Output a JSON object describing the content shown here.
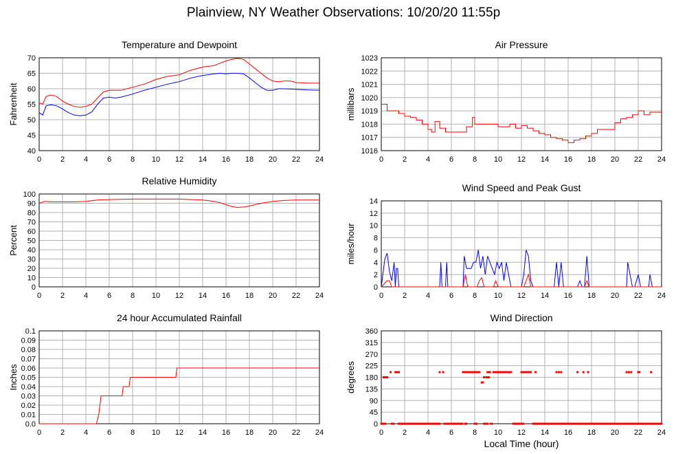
{
  "page": {
    "title": "Plainview, NY Weather Observations: 10/20/20 11:55p"
  },
  "chart_data": [
    {
      "type": "line",
      "title": "Temperature and Dewpoint",
      "ylabel": "Fahrenheit",
      "xlabel": "",
      "xlim": [
        0,
        24
      ],
      "ylim": [
        40,
        70
      ],
      "xticks": [
        0,
        2,
        4,
        6,
        8,
        10,
        12,
        14,
        16,
        18,
        20,
        22,
        24
      ],
      "yticks": [
        40,
        45,
        50,
        55,
        60,
        65,
        70
      ],
      "grid": true,
      "colors": {
        "series_1": "#ff0000",
        "series_2": "#0000ff"
      },
      "series": [
        {
          "color": "#ff0000",
          "x": [
            0,
            0.3,
            0.6,
            1,
            1.5,
            2,
            2.5,
            3,
            3.5,
            4,
            4.5,
            5,
            5.5,
            6,
            6.5,
            7,
            8,
            9,
            10,
            11,
            12,
            12.5,
            13,
            14,
            15,
            15.5,
            16,
            16.5,
            17,
            17.5,
            18,
            18.5,
            19,
            19.5,
            20,
            20.5,
            21,
            21.5,
            22,
            23,
            24
          ],
          "y": [
            55.5,
            55,
            57.5,
            58,
            57.5,
            56,
            55,
            54.3,
            54,
            54.3,
            55,
            57,
            59,
            59.5,
            59.5,
            59.5,
            60.5,
            61.5,
            63,
            64,
            64.5,
            65.3,
            66,
            67,
            67.5,
            68.3,
            69,
            69.5,
            69.8,
            69.5,
            68,
            66.5,
            65,
            63.5,
            62.5,
            62.3,
            62.5,
            62.5,
            62,
            61.8,
            61.8
          ]
        },
        {
          "color": "#0000ff",
          "x": [
            0,
            0.3,
            0.6,
            1,
            1.5,
            2,
            2.5,
            3,
            3.5,
            4,
            4.5,
            5,
            5.5,
            6,
            6.5,
            7,
            8,
            9,
            10,
            11,
            12,
            13,
            14,
            15,
            15.5,
            16,
            16.5,
            17,
            17.5,
            18,
            18.5,
            19,
            19.5,
            20,
            20.5,
            21,
            22,
            23,
            24
          ],
          "y": [
            52.3,
            51.5,
            54.5,
            54.8,
            54.5,
            53.5,
            52.3,
            51.5,
            51.3,
            51.5,
            52.5,
            55,
            57,
            57.3,
            57,
            57.3,
            58.3,
            59.5,
            60.5,
            61.5,
            62.3,
            63.5,
            64.3,
            64.8,
            65,
            64.8,
            65,
            65,
            64.8,
            63.5,
            62,
            60.5,
            59.5,
            59.5,
            60,
            60,
            59.8,
            59.6,
            59.5
          ]
        }
      ]
    },
    {
      "type": "line",
      "title": "Air Pressure",
      "ylabel": "millibars",
      "xlabel": "",
      "xlim": [
        0,
        24
      ],
      "ylim": [
        1016,
        1023
      ],
      "xticks": [
        0,
        2,
        4,
        6,
        8,
        10,
        12,
        14,
        16,
        18,
        20,
        22,
        24
      ],
      "yticks": [
        1016,
        1017,
        1018,
        1019,
        1020,
        1021,
        1022,
        1023
      ],
      "grid": true,
      "series": [
        {
          "color": "#ff0000",
          "step": true,
          "x": [
            0,
            0.5,
            1,
            1.5,
            2,
            2.5,
            3,
            3.5,
            4,
            4.3,
            4.6,
            5,
            5.5,
            6,
            7,
            7.3,
            7.8,
            8,
            8.5,
            9,
            10,
            10.5,
            11,
            11.5,
            12,
            12.5,
            13,
            13.5,
            14,
            14.5,
            15,
            15.5,
            16,
            16.5,
            17,
            17.5,
            18,
            18.5,
            19,
            19.5,
            20,
            20.5,
            21,
            21.5,
            22,
            22.5,
            23,
            23.5,
            24
          ],
          "y": [
            1019.5,
            1019,
            1019,
            1018.8,
            1018.6,
            1018.5,
            1018.3,
            1018,
            1017.6,
            1017.4,
            1018.2,
            1017.7,
            1017.4,
            1017.4,
            1017.4,
            1017.8,
            1018.5,
            1018,
            1018,
            1018,
            1017.8,
            1017.8,
            1018,
            1017.7,
            1017.9,
            1017.7,
            1017.5,
            1017.3,
            1017.2,
            1017,
            1016.9,
            1016.8,
            1016.6,
            1016.8,
            1016.9,
            1017.1,
            1017.3,
            1017.6,
            1017.6,
            1017.6,
            1018.1,
            1018.4,
            1018.5,
            1018.7,
            1019,
            1018.7,
            1018.9,
            1018.9,
            1018.9
          ]
        }
      ]
    },
    {
      "type": "line",
      "title": "Relative Humidity",
      "ylabel": "Percent",
      "xlabel": "",
      "xlim": [
        0,
        24
      ],
      "ylim": [
        0,
        100
      ],
      "xticks": [
        0,
        2,
        4,
        6,
        8,
        10,
        12,
        14,
        16,
        18,
        20,
        22,
        24
      ],
      "yticks": [
        0,
        10,
        20,
        30,
        40,
        50,
        60,
        70,
        80,
        90,
        100
      ],
      "grid": true,
      "series": [
        {
          "color": "#ff0000",
          "x": [
            0,
            0.5,
            1,
            2,
            3,
            4,
            5,
            6,
            8,
            10,
            12,
            13,
            14,
            15,
            15.5,
            16,
            16.5,
            17,
            17.5,
            18,
            18.5,
            19,
            20,
            21,
            22,
            23,
            24
          ],
          "y": [
            90,
            92,
            91.5,
            91.5,
            91.5,
            92,
            93.5,
            94,
            94.5,
            94.5,
            94.5,
            94,
            93.5,
            92,
            90.5,
            88.5,
            86.5,
            85.5,
            86,
            87,
            88.5,
            90,
            92,
            93,
            93.5,
            93.5,
            93.5
          ]
        }
      ]
    },
    {
      "type": "line",
      "title": "Wind Speed and Peak Gust",
      "ylabel": "miles/hour",
      "xlabel": "",
      "xlim": [
        0,
        24
      ],
      "ylim": [
        0,
        14
      ],
      "xticks": [
        0,
        2,
        4,
        6,
        8,
        10,
        12,
        14,
        16,
        18,
        20,
        22,
        24
      ],
      "yticks": [
        0,
        2,
        4,
        6,
        8,
        10,
        12,
        14
      ],
      "grid": true,
      "series": [
        {
          "color": "#0000ff",
          "x": [
            0,
            0.3,
            0.5,
            0.7,
            0.9,
            1.1,
            1.2,
            1.3,
            1.4,
            1.5,
            1.6,
            5,
            5.1,
            5.2,
            5.5,
            5.6,
            5.7,
            7,
            7.1,
            7.3,
            7.5,
            7.7,
            7.9,
            8.1,
            8.3,
            8.5,
            8.7,
            8.9,
            9.1,
            9.3,
            9.5,
            9.7,
            9.9,
            10.1,
            10.3,
            10.5,
            10.7,
            10.9,
            11.1,
            11.3,
            11.5,
            11.7,
            12,
            12.2,
            12.4,
            12.6,
            12.8,
            13,
            14.8,
            15,
            15.2,
            15.4,
            15.6,
            16.8,
            17,
            17.2,
            17.4,
            17.6,
            17.8,
            21,
            21.1,
            21.3,
            21.5,
            21.7,
            22,
            22.2,
            22.4,
            22.9,
            23,
            23.2
          ],
          "y": [
            0,
            4.5,
            5.5,
            2.5,
            1,
            4,
            0,
            3,
            3,
            0,
            0,
            0,
            4,
            0,
            0,
            4,
            0,
            0,
            5,
            3,
            3,
            3,
            4,
            4,
            6,
            3,
            5,
            2,
            5,
            4,
            3,
            2,
            4,
            3,
            4,
            1,
            4,
            2,
            0,
            0,
            0,
            0,
            0,
            2,
            6,
            5,
            1,
            0,
            0,
            4,
            0,
            4,
            0,
            0,
            1,
            0,
            0,
            5,
            0,
            0,
            4,
            2,
            0,
            0,
            2,
            0,
            0,
            0,
            2,
            0
          ]
        },
        {
          "color": "#ff0000",
          "x": [
            0,
            0.5,
            0.7,
            0.9,
            1.2,
            7,
            7.2,
            7.4,
            8.2,
            8.4,
            8.6,
            8.8,
            9,
            9.6,
            9.8,
            10,
            12.2,
            12.4,
            12.6,
            12.8,
            17.4,
            17.6,
            17.8,
            24
          ],
          "y": [
            0,
            1,
            1,
            0,
            0,
            0,
            2,
            0,
            0,
            1,
            1.5,
            0,
            0,
            0,
            1,
            0,
            0,
            1,
            2,
            0,
            0,
            1,
            0,
            0
          ]
        }
      ]
    },
    {
      "type": "line",
      "title": "24 hour Accumulated Rainfall",
      "ylabel": "Inches",
      "xlabel": "",
      "xlim": [
        0,
        24
      ],
      "ylim": [
        0,
        0.1
      ],
      "xticks": [
        0,
        2,
        4,
        6,
        8,
        10,
        12,
        14,
        16,
        18,
        20,
        22,
        24
      ],
      "yticks": [
        0.0,
        0.01,
        0.02,
        0.03,
        0.04,
        0.05,
        0.06,
        0.07,
        0.08,
        0.09,
        0.1
      ],
      "ytick_labels": [
        "0.0",
        "0.01",
        "0.02",
        "0.03",
        "0.04",
        "0.05",
        "0.06",
        "0.07",
        "0.08",
        "0.09",
        "0.1"
      ],
      "grid": true,
      "series": [
        {
          "color": "#ff0000",
          "x": [
            0,
            4.9,
            5.1,
            5.2,
            5.3,
            7.1,
            7.2,
            7.7,
            7.8,
            11.7,
            11.8,
            24
          ],
          "y": [
            0,
            0,
            0.01,
            0.02,
            0.03,
            0.03,
            0.04,
            0.04,
            0.05,
            0.05,
            0.06,
            0.06
          ]
        }
      ]
    },
    {
      "type": "scatter",
      "title": "Wind Direction",
      "ylabel": "degrees",
      "xlabel": "Local Time (hour)",
      "xlim": [
        0,
        24
      ],
      "ylim": [
        0,
        360
      ],
      "xticks": [
        0,
        2,
        4,
        6,
        8,
        10,
        12,
        14,
        16,
        18,
        20,
        22,
        24
      ],
      "yticks": [
        0,
        45,
        90,
        135,
        180,
        225,
        270,
        315,
        360
      ],
      "grid": true,
      "series": [
        {
          "color": "#ff0000",
          "points_zero_range": [
            [
              0,
              0.4
            ],
            [
              0.9,
              1.1
            ],
            [
              1.5,
              5
            ],
            [
              5.4,
              7
            ],
            [
              7.2,
              7.3
            ],
            [
              8,
              8.2
            ],
            [
              8.8,
              9.1
            ],
            [
              9.4,
              9.5
            ],
            [
              11.3,
              12.2
            ],
            [
              13,
              24
            ]
          ],
          "points_180": [
            0.2,
            0.25,
            0.3,
            0.35,
            0.4,
            0.45,
            0.5
          ],
          "points_200": [
            0.8,
            1.2,
            1.3,
            1.4,
            1.5,
            5.0,
            5.3,
            7.0,
            7.1,
            7.2,
            7.3,
            7.4,
            7.5,
            7.6,
            7.7,
            7.8,
            7.9,
            8.0,
            8.1,
            8.2,
            8.3,
            8.4,
            9.1,
            9.2,
            9.3,
            9.6,
            9.7,
            9.8,
            9.9,
            10.0,
            10.1,
            10.2,
            10.3,
            10.4,
            10.5,
            10.6,
            10.7,
            10.8,
            10.9,
            11.0,
            11.1,
            12.0,
            12.1,
            12.2,
            12.3,
            12.4,
            12.5,
            12.6,
            12.7,
            12.8,
            13.2,
            15.0,
            15.2,
            15.4,
            16.8,
            17.3,
            17.7,
            21.0,
            21.2,
            21.4,
            22.0,
            22.1,
            23.1
          ],
          "points_180b": [
            8.8,
            9.0,
            9.1,
            9.2
          ],
          "points_160": [
            8.6,
            8.7
          ]
        }
      ]
    }
  ]
}
